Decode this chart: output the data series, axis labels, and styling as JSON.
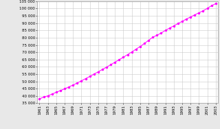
{
  "years": [
    1961,
    1962,
    1963,
    1964,
    1965,
    1966,
    1967,
    1968,
    1969,
    1970,
    1971,
    1972,
    1973,
    1974,
    1975,
    1976,
    1977,
    1978,
    1979,
    1980,
    1981,
    1982,
    1983,
    1984,
    1985,
    1986,
    1987,
    1988,
    1989,
    1990,
    1991,
    1992,
    1993,
    1994,
    1995,
    1996,
    1997,
    1998,
    1999,
    2000,
    2001,
    2002,
    2003
  ],
  "population": [
    38000,
    39200,
    40100,
    41300,
    42500,
    43700,
    44900,
    46200,
    47500,
    48900,
    50400,
    51900,
    53400,
    55000,
    56600,
    58200,
    59800,
    61500,
    63200,
    64900,
    66600,
    68400,
    70200,
    72100,
    74000,
    76000,
    78200,
    80300,
    81700,
    83200,
    85000,
    86600,
    88100,
    89700,
    91200,
    92800,
    94200,
    95700,
    97100,
    98500,
    100100,
    102000,
    103400
  ],
  "line_color": "#ff00ff",
  "marker_color": "#ff00ff",
  "bg_color": "#e8e8e8",
  "plot_bg": "#ffffff",
  "yticks": [
    35000,
    40000,
    45000,
    50000,
    55000,
    60000,
    65000,
    70000,
    75000,
    80000,
    85000,
    90000,
    95000,
    100000,
    105000
  ],
  "xticks": [
    1961,
    1963,
    1965,
    1967,
    1969,
    1971,
    1973,
    1975,
    1977,
    1979,
    1981,
    1983,
    1985,
    1987,
    1989,
    1991,
    1993,
    1995,
    1997,
    1999,
    2001,
    2003
  ],
  "ylim": [
    35000,
    105000
  ],
  "xlim": [
    1960.5,
    2003.5
  ]
}
